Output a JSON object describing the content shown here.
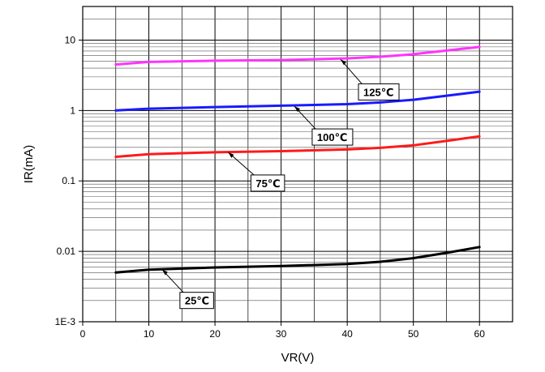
{
  "chart_data": {
    "type": "line",
    "xlabel": "VR(V)",
    "ylabel": "IR(mA)",
    "xlim": [
      0,
      65
    ],
    "ylim": [
      0.001,
      30
    ],
    "y_scale": "log",
    "grid": true,
    "x_ticks": [
      "0",
      "10",
      "20",
      "30",
      "40",
      "50",
      "60"
    ],
    "y_ticks": [
      "1E-3",
      "0.01",
      "0.1",
      "1",
      "10"
    ],
    "series": [
      {
        "name": "125℃",
        "color": "#ff33ff",
        "x": [
          5,
          10,
          20,
          30,
          40,
          45,
          50,
          55,
          60
        ],
        "y": [
          4.5,
          4.9,
          5.1,
          5.2,
          5.5,
          5.8,
          6.3,
          7.1,
          8.0
        ],
        "callout_at": [
          39,
          5.3
        ]
      },
      {
        "name": "100℃",
        "color": "#1a1aff",
        "x": [
          5,
          10,
          20,
          30,
          40,
          45,
          50,
          55,
          60
        ],
        "y": [
          1.0,
          1.06,
          1.12,
          1.17,
          1.23,
          1.3,
          1.42,
          1.62,
          1.85
        ],
        "callout_at": [
          32,
          1.15
        ]
      },
      {
        "name": "75℃",
        "color": "#ff1a1a",
        "x": [
          5,
          10,
          20,
          30,
          40,
          45,
          50,
          55,
          60
        ],
        "y": [
          0.22,
          0.24,
          0.255,
          0.265,
          0.28,
          0.295,
          0.32,
          0.37,
          0.43
        ],
        "callout_at": [
          22,
          0.255
        ]
      },
      {
        "name": "25℃",
        "color": "#000000",
        "x": [
          5,
          10,
          20,
          30,
          40,
          45,
          50,
          55,
          60
        ],
        "y": [
          0.005,
          0.0055,
          0.0059,
          0.0062,
          0.0066,
          0.0071,
          0.008,
          0.0095,
          0.0115
        ],
        "callout_at": [
          12,
          0.0055
        ]
      }
    ]
  }
}
